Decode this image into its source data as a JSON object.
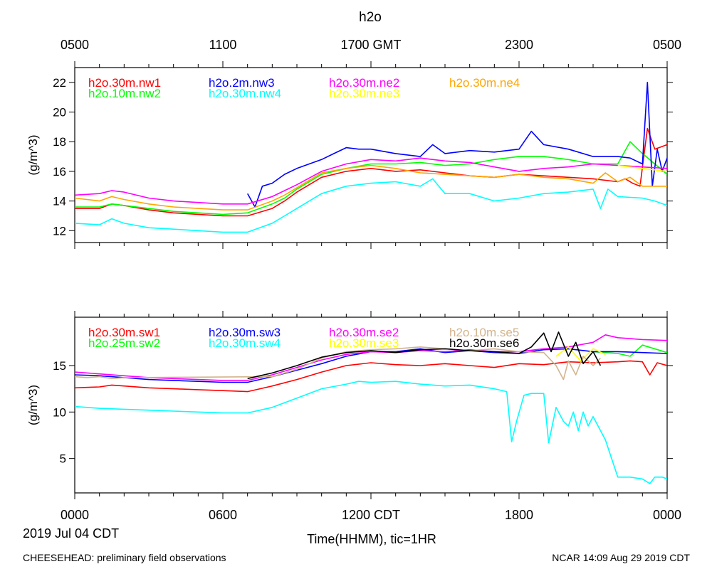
{
  "chart_data": {
    "type": "line",
    "title": "h2o",
    "top_axis": {
      "ticks": [
        "0500",
        "1100",
        "1700 GMT",
        "2300",
        "0500"
      ]
    },
    "bottom_axis": {
      "ticks": [
        "0000",
        "0600",
        "1200 CDT",
        "1800",
        "0000"
      ],
      "date_label": "2019 Jul 04 CDT",
      "xlabel": "Time(HHMM), tic=1HR",
      "xlim_hours": [
        0,
        24
      ]
    },
    "panels": [
      {
        "name": "top",
        "ylabel": "(g/m^3)",
        "ylim": [
          11.2,
          23.0
        ],
        "yticks": [
          12,
          14,
          16,
          18,
          20,
          22
        ],
        "series": [
          {
            "name": "h2o.30m.nw1",
            "color": "#ff0000",
            "x": [
              0,
              1,
              1.5,
              2,
              3,
              4,
              5,
              6,
              7,
              8,
              8.5,
              9,
              10,
              11,
              12,
              13,
              14,
              15,
              16,
              17,
              18,
              19,
              20,
              21,
              22,
              22.3,
              22.6,
              22.9,
              23.2,
              23.5,
              24
            ],
            "y": [
              13.5,
              13.5,
              13.8,
              13.7,
              13.4,
              13.2,
              13.1,
              13.0,
              13.0,
              13.5,
              14.0,
              14.6,
              15.6,
              16.0,
              16.2,
              16.0,
              16.1,
              15.9,
              15.7,
              15.6,
              15.8,
              15.7,
              15.6,
              15.5,
              15.3,
              15.5,
              15.2,
              15.0,
              18.9,
              17.5,
              17.8
            ]
          },
          {
            "name": "h2o.10m.nw2",
            "color": "#00ff00",
            "x": [
              0,
              1,
              1.5,
              2,
              3,
              4,
              5,
              6,
              7,
              8,
              8.5,
              9,
              10,
              11,
              12,
              13,
              14,
              15,
              16,
              17,
              18,
              19,
              20,
              21,
              22,
              22.5,
              23,
              23.5,
              24
            ],
            "y": [
              13.6,
              13.6,
              13.8,
              13.7,
              13.5,
              13.3,
              13.2,
              13.1,
              13.2,
              13.8,
              14.2,
              14.8,
              15.8,
              16.2,
              16.5,
              16.5,
              16.6,
              16.4,
              16.5,
              16.8,
              17.0,
              17.0,
              16.8,
              16.5,
              16.5,
              18.0,
              17.2,
              16.5,
              15.8
            ]
          },
          {
            "name": "h2o.2m.nw3",
            "color": "#0000ff",
            "x": [
              7,
              7.3,
              7.6,
              8,
              8.5,
              9,
              9.5,
              10,
              10.5,
              11,
              11.5,
              12,
              13,
              14,
              14.5,
              15,
              16,
              17,
              18,
              18.5,
              19,
              20,
              21,
              22,
              22.5,
              23,
              23.2,
              23.4,
              23.6,
              23.8,
              24
            ],
            "y": [
              14.5,
              13.6,
              15.0,
              15.2,
              15.8,
              16.2,
              16.5,
              16.8,
              17.2,
              17.6,
              17.5,
              17.5,
              17.2,
              17.0,
              17.8,
              17.2,
              17.4,
              17.3,
              17.5,
              18.7,
              17.8,
              17.5,
              17.0,
              17.0,
              16.9,
              16.5,
              22.0,
              15.0,
              17.5,
              16.0,
              16.9
            ]
          },
          {
            "name": "h2o.30m.nw4",
            "color": "#00ffff",
            "x": [
              0,
              1,
              1.5,
              2,
              3,
              4,
              5,
              6,
              7,
              8,
              8.5,
              9,
              10,
              11,
              12,
              13,
              14,
              14.5,
              15,
              16,
              17,
              18,
              19,
              20,
              21,
              21.3,
              21.6,
              22,
              23,
              23.5,
              24
            ],
            "y": [
              12.5,
              12.4,
              12.8,
              12.5,
              12.2,
              12.1,
              12.0,
              11.9,
              11.9,
              12.5,
              13.0,
              13.5,
              14.5,
              15.0,
              15.2,
              15.3,
              15.0,
              15.5,
              14.5,
              14.5,
              14.0,
              14.2,
              14.5,
              14.6,
              14.8,
              13.5,
              14.8,
              14.3,
              14.2,
              14.0,
              13.7
            ]
          },
          {
            "name": "h2o.30m.ne2",
            "color": "#ff00ff",
            "x": [
              0,
              1,
              1.5,
              2,
              3,
              4,
              5,
              6,
              7,
              8,
              8.5,
              9,
              10,
              11,
              12,
              13,
              14,
              15,
              16,
              17,
              18,
              19,
              20,
              21,
              22,
              23,
              24
            ],
            "y": [
              14.4,
              14.5,
              14.7,
              14.6,
              14.2,
              14.0,
              13.9,
              13.8,
              13.8,
              14.3,
              14.7,
              15.1,
              16.0,
              16.5,
              16.8,
              16.7,
              16.9,
              16.7,
              16.6,
              16.3,
              16.0,
              16.2,
              16.3,
              16.5,
              16.4,
              16.3,
              16.2
            ]
          },
          {
            "name": "h2o.30m.ne3",
            "color": "#ffff00",
            "x": [
              22,
              23,
              24
            ],
            "y": [
              16.4,
              16.2,
              16.0
            ]
          },
          {
            "name": "h2o.30m.ne4",
            "color": "#ffa500",
            "x": [
              0,
              1,
              1.5,
              2,
              3,
              4,
              5,
              6,
              7,
              8,
              8.5,
              9,
              10,
              11,
              12,
              13,
              14,
              15,
              16,
              17,
              18,
              19,
              20,
              21,
              21.5,
              22,
              22.5,
              23,
              23.5,
              24
            ],
            "y": [
              14.2,
              14.0,
              14.3,
              14.1,
              13.8,
              13.6,
              13.5,
              13.4,
              13.4,
              14.0,
              14.4,
              14.9,
              15.9,
              16.2,
              16.4,
              16.2,
              15.9,
              15.8,
              15.7,
              15.6,
              15.8,
              15.6,
              15.5,
              15.2,
              15.9,
              15.3,
              15.6,
              15.0,
              15.0,
              15.0
            ]
          }
        ]
      },
      {
        "name": "bottom",
        "ylabel": "(g/m^3)",
        "ylim": [
          1.3,
          20.2
        ],
        "yticks": [
          5,
          10,
          15
        ],
        "series": [
          {
            "name": "h2o.30m.sw1",
            "color": "#ff0000",
            "x": [
              0,
              1,
              1.5,
              2,
              3,
              4,
              5,
              6,
              7,
              8,
              9,
              10,
              11,
              12,
              13,
              14,
              15,
              16,
              17,
              18,
              19,
              20,
              21,
              22,
              22.5,
              23,
              23.3,
              23.6,
              24
            ],
            "y": [
              12.6,
              12.7,
              12.9,
              12.8,
              12.6,
              12.5,
              12.4,
              12.3,
              12.2,
              12.8,
              13.5,
              14.3,
              15.0,
              15.3,
              15.1,
              15.0,
              15.2,
              15.0,
              14.8,
              15.2,
              15.1,
              15.4,
              15.3,
              15.4,
              15.5,
              15.4,
              14.0,
              15.3,
              15.0
            ]
          },
          {
            "name": "h2o.25m.sw2",
            "color": "#00ff00",
            "x": [
              21,
              22,
              22.5,
              23,
              24
            ],
            "y": [
              16.5,
              16.3,
              16.0,
              17.2,
              16.4
            ]
          },
          {
            "name": "h2o.30m.sw3",
            "color": "#0000ff",
            "x": [
              0,
              1,
              2,
              3,
              4,
              5,
              6,
              7,
              8,
              9,
              10,
              11,
              12,
              13,
              14,
              15,
              16,
              17,
              18,
              19,
              20,
              21,
              22,
              23,
              24
            ],
            "y": [
              14.0,
              13.9,
              13.7,
              13.5,
              13.4,
              13.3,
              13.2,
              13.2,
              13.8,
              14.5,
              15.2,
              16.0,
              16.5,
              16.5,
              16.8,
              16.4,
              16.6,
              16.4,
              16.3,
              16.7,
              16.8,
              16.5,
              16.5,
              16.4,
              16.3
            ]
          },
          {
            "name": "h2o.30m.sw4",
            "color": "#00ffff",
            "x": [
              0,
              1,
              2,
              3,
              4,
              5,
              6,
              7,
              8,
              9,
              10,
              11,
              11.5,
              12,
              13,
              14,
              15,
              16,
              17,
              17.5,
              17.7,
              17.9,
              18.2,
              18.5,
              19,
              19.2,
              19.5,
              19.8,
              20,
              20.2,
              20.4,
              20.6,
              20.8,
              21,
              21.5,
              22,
              22.5,
              23,
              23.3,
              23.5,
              23.8,
              24
            ],
            "y": [
              10.6,
              10.4,
              10.3,
              10.2,
              10.1,
              10.0,
              9.9,
              9.9,
              10.5,
              11.5,
              12.5,
              13.0,
              13.3,
              13.2,
              13.3,
              13.0,
              12.8,
              12.9,
              12.5,
              12.2,
              6.8,
              9.0,
              11.8,
              12.0,
              12.0,
              6.7,
              10.5,
              9.0,
              8.5,
              10.0,
              8.0,
              10.0,
              8.5,
              9.5,
              7.0,
              3.0,
              3.0,
              2.8,
              2.3,
              3.0,
              3.0,
              2.8
            ]
          },
          {
            "name": "h2o.30m.se2",
            "color": "#ff00ff",
            "x": [
              0,
              1,
              2,
              3,
              4,
              5,
              6,
              7,
              8,
              9,
              10,
              11,
              12,
              13,
              14,
              15,
              16,
              17,
              18,
              19,
              20,
              21,
              21.5,
              22,
              23,
              24
            ],
            "y": [
              14.3,
              14.1,
              13.9,
              13.7,
              13.6,
              13.5,
              13.4,
              13.4,
              14.0,
              14.8,
              15.6,
              16.2,
              16.5,
              16.4,
              16.6,
              16.5,
              16.7,
              16.5,
              16.5,
              16.8,
              17.0,
              17.5,
              18.3,
              18.0,
              17.8,
              17.7
            ]
          },
          {
            "name": "h2o.30m.se3",
            "color": "#ffff00",
            "x": [
              19.5,
              20,
              20.5,
              21,
              21.5
            ],
            "y": [
              16.0,
              17.0,
              15.5,
              16.8,
              16.2
            ]
          },
          {
            "name": "h2o.10m.se5",
            "color": "#d2b48c",
            "x": [
              0,
              0.5,
              1,
              1.5,
              2,
              8,
              9,
              10,
              11,
              12,
              13,
              14,
              15,
              16,
              17,
              18,
              19,
              19.5,
              19.8,
              20,
              20.3,
              20.6,
              21,
              21.3
            ],
            "y": [
              13.8,
              13.7,
              13.8,
              13.6,
              13.7,
              13.8,
              14.6,
              15.8,
              16.5,
              16.7,
              16.8,
              17.0,
              16.8,
              16.6,
              16.8,
              16.5,
              16.4,
              15.0,
              13.5,
              15.5,
              14.0,
              16.0,
              15.0,
              15.8
            ]
          },
          {
            "name": "h2o.30m.se6",
            "color": "#000000",
            "x": [
              7,
              8,
              9,
              10,
              11,
              12,
              13,
              14,
              15,
              16,
              17,
              18,
              18.5,
              19,
              19.3,
              19.6,
              20,
              20.3,
              20.6,
              21,
              21.3
            ],
            "y": [
              13.6,
              14.2,
              15.0,
              15.9,
              16.4,
              16.6,
              16.4,
              16.7,
              16.8,
              16.6,
              16.5,
              16.3,
              17.0,
              18.5,
              16.5,
              18.6,
              16.0,
              17.5,
              15.2,
              16.5,
              15.0
            ]
          }
        ]
      }
    ]
  },
  "footer": {
    "left": "CHEESEHEAD: preliminary field observations",
    "right": "NCAR 14:09 Aug 29 2019 CDT"
  }
}
